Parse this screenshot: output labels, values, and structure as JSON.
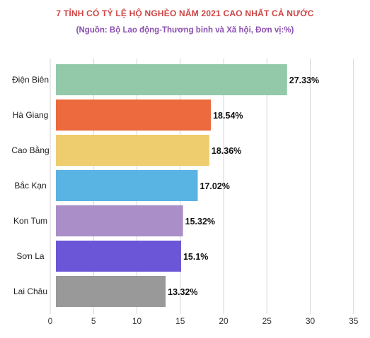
{
  "chart_data": {
    "type": "bar",
    "orientation": "horizontal",
    "title": "7 TỈNH CÓ TỶ LỆ HỘ NGHÈO NĂM 2021 CAO NHẤT CẢ NƯỚC",
    "subtitle": "(Nguồn: Bộ Lao động-Thương binh và Xã hội, Đơn vị:%)",
    "categories": [
      "Điện Biên",
      "Hà Giang",
      "Cao Bằng",
      "Bắc Kạn",
      "Kon Tum",
      "Sơn La",
      "Lai Châu"
    ],
    "values": [
      27.33,
      18.54,
      18.36,
      17.02,
      15.32,
      15.1,
      13.32
    ],
    "value_labels": [
      "27.33%",
      "18.54%",
      "18.36%",
      "17.02%",
      "15.32%",
      "15.1%",
      "13.32%"
    ],
    "bar_colors": [
      "#93c9a9",
      "#ec6a3d",
      "#eecd6e",
      "#5ab4e3",
      "#a98ec7",
      "#6a56d6",
      "#999999"
    ],
    "x_ticks": [
      "0",
      "5",
      "10",
      "15",
      "20",
      "25",
      "30",
      "35"
    ],
    "xlim": [
      0,
      35
    ],
    "grid": true,
    "xlabel": "",
    "ylabel": ""
  },
  "colors": {
    "title": "#cf4444",
    "subtitle": "#8a4fb0",
    "grid": "#d6d6d6"
  }
}
